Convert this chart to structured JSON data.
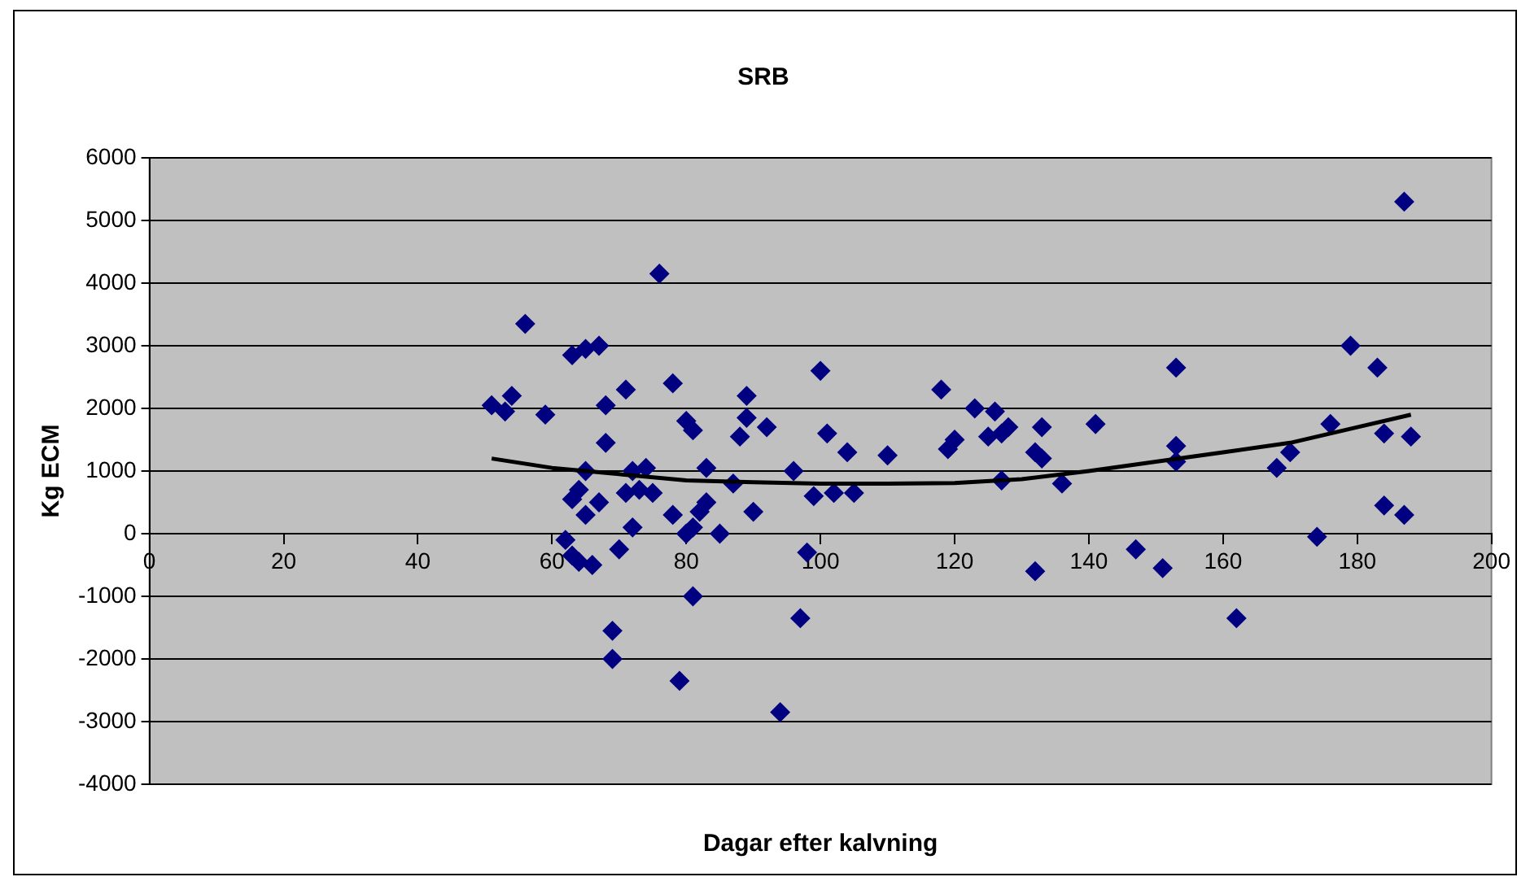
{
  "chart_data": {
    "type": "scatter",
    "title": "SRB",
    "xlabel": "Dagar efter kalvning",
    "ylabel": "Kg ECM",
    "xlim": [
      0,
      200
    ],
    "xticks": [
      0,
      20,
      40,
      60,
      80,
      100,
      120,
      140,
      160,
      180,
      200
    ],
    "ylim": [
      -4000,
      6000
    ],
    "yticks": [
      -4000,
      -3000,
      -2000,
      -1000,
      0,
      1000,
      2000,
      3000,
      4000,
      5000,
      6000
    ],
    "grid": "y",
    "legend": false,
    "marker": "diamond",
    "series": [
      {
        "type": "scatter",
        "color": "#000080",
        "x": [
          51,
          53,
          54,
          56,
          59,
          62,
          63,
          63,
          63,
          64,
          64,
          65,
          65,
          65,
          66,
          67,
          67,
          68,
          68,
          69,
          69,
          70,
          71,
          71,
          72,
          72,
          73,
          74,
          75,
          76,
          78,
          78,
          79,
          80,
          80,
          81,
          81,
          81,
          82,
          83,
          83,
          85,
          87,
          88,
          89,
          89,
          90,
          92,
          94,
          96,
          97,
          98,
          99,
          100,
          101,
          102,
          104,
          105,
          110,
          118,
          119,
          120,
          123,
          125,
          126,
          127,
          127,
          128,
          132,
          132,
          133,
          133,
          136,
          141,
          147,
          151,
          153,
          153,
          153,
          162,
          168,
          170,
          174,
          176,
          179,
          183,
          184,
          184,
          187,
          187,
          188
        ],
        "values": [
          2050,
          1950,
          2200,
          3350,
          1900,
          -100,
          550,
          -350,
          2850,
          700,
          -450,
          2950,
          1000,
          300,
          -500,
          3000,
          500,
          2050,
          1450,
          -1550,
          -2000,
          -250,
          2300,
          650,
          1000,
          100,
          700,
          1050,
          650,
          4150,
          2400,
          300,
          -2350,
          1800,
          0,
          1650,
          -1000,
          100,
          350,
          1050,
          500,
          0,
          800,
          1550,
          2200,
          1850,
          350,
          1700,
          -2850,
          1000,
          -1350,
          -300,
          600,
          2600,
          1600,
          650,
          1300,
          650,
          1250,
          2300,
          1350,
          1500,
          2000,
          1550,
          1950,
          850,
          1600,
          1700,
          -600,
          1300,
          1200,
          1700,
          800,
          1750,
          -250,
          -550,
          2650,
          1400,
          1150,
          -1350,
          1050,
          1300,
          -50,
          1750,
          3000,
          2650,
          1600,
          450,
          300,
          5300,
          1550
        ]
      },
      {
        "type": "line",
        "color": "#000000",
        "marker": "none",
        "x": [
          51,
          60,
          70,
          80,
          90,
          100,
          110,
          120,
          130,
          140,
          150,
          160,
          170,
          180,
          188
        ],
        "values": [
          1200,
          1050,
          950,
          850,
          820,
          800,
          800,
          810,
          870,
          1000,
          1150,
          1300,
          1450,
          1700,
          1900
        ]
      }
    ]
  }
}
